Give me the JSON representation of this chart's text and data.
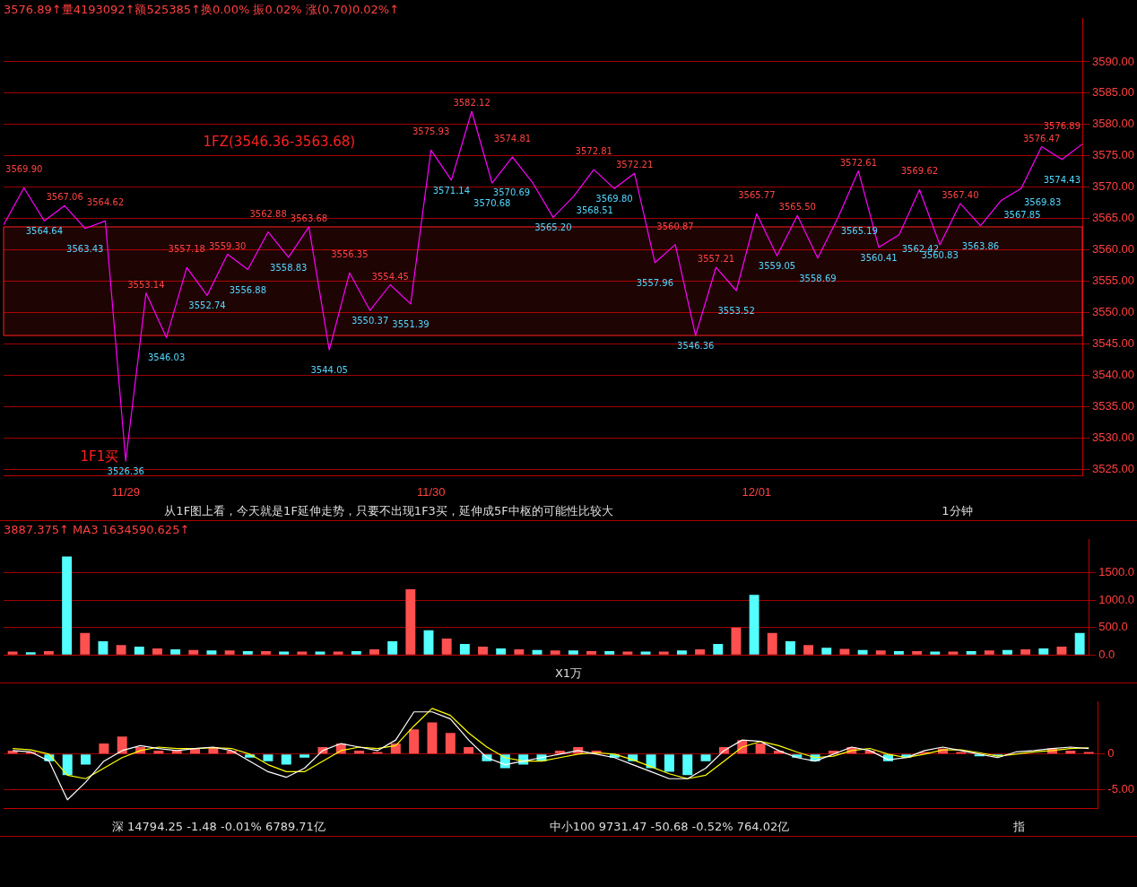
{
  "chart_data": [
    {
      "type": "line",
      "title": "3576.89↑量4193092↑额525385↑换0.00% 振0.02% 涨(0.70)0.02%↑",
      "categories": [
        null,
        null,
        null,
        null,
        null,
        null,
        "11/29",
        null,
        null,
        null,
        null,
        null,
        null,
        null,
        null,
        null,
        null,
        null,
        null,
        null,
        null,
        "11/30",
        null,
        null,
        null,
        null,
        null,
        null,
        null,
        null,
        null,
        null,
        null,
        null,
        null,
        null,
        null,
        "12/01",
        null,
        null,
        null,
        null,
        null,
        null,
        null,
        null,
        null,
        null,
        null,
        null,
        null,
        null,
        null,
        null
      ],
      "ylim": [
        3524,
        3597
      ],
      "yticks": [
        {
          "value": 3525,
          "label": "3525.00"
        },
        {
          "value": 3530,
          "label": "3530.00"
        },
        {
          "value": 3535,
          "label": "3535.00"
        },
        {
          "value": 3540,
          "label": "3540.00"
        },
        {
          "value": 3545,
          "label": "3545.00"
        },
        {
          "value": 3550,
          "label": "3550.00"
        },
        {
          "value": 3555,
          "label": "3555.00"
        },
        {
          "value": 3560,
          "label": "3560.00"
        },
        {
          "value": 3565,
          "label": "3565.00"
        },
        {
          "value": 3570,
          "label": "3570.00"
        },
        {
          "value": 3575,
          "label": "3575.00"
        },
        {
          "value": 3580,
          "label": "3580.00"
        },
        {
          "value": 3585,
          "label": "3585.00"
        },
        {
          "value": 3590,
          "label": "3590.00"
        }
      ],
      "grid": "y",
      "legend": false,
      "marker": "none",
      "line_style": "solid",
      "series": [
        {
          "color": "#ff00ff",
          "values": [
            3564,
            3569.9,
            3564.64,
            3567.06,
            3563.43,
            3564.62,
            3526.36,
            3553.14,
            3546.03,
            3557.18,
            3552.74,
            3559.3,
            3556.88,
            3562.88,
            3558.83,
            3563.68,
            3544.05,
            3556.35,
            3550.37,
            3554.45,
            3551.39,
            3575.93,
            3571.14,
            3582.12,
            3570.68,
            3574.81,
            3570.69,
            3565.2,
            3568.51,
            3572.81,
            3569.8,
            3572.21,
            3557.96,
            3560.87,
            3546.36,
            3557.21,
            3553.52,
            3565.77,
            3559.05,
            3565.5,
            3558.69,
            3565.19,
            3572.61,
            3560.41,
            3562.42,
            3569.62,
            3560.83,
            3567.4,
            3563.86,
            3567.85,
            3569.83,
            3576.47,
            3574.43,
            3576.89
          ],
          "value_labels": [
            null,
            "3569.90",
            "3564.64",
            "3567.06",
            "3563.43",
            "3564.62",
            "3526.36",
            "3553.14",
            "3546.03",
            "3557.18",
            "3552.74",
            "3559.30",
            "3556.88",
            "3562.88",
            "3558.83",
            "3563.68",
            "3544.05",
            "3556.35",
            "3550.37",
            "3554.45",
            "3551.39",
            "3575.93",
            "3571.14",
            "3582.12",
            "3570.68",
            "3574.81",
            "3570.69",
            "3565.20",
            "3568.51",
            "3572.81",
            "3569.80",
            "3572.21",
            "3557.96",
            "3560.87",
            "3546.36",
            "3557.21",
            "3553.52",
            "3565.77",
            "3559.05",
            "3565.50",
            "3558.69",
            "3565.19",
            "3572.61",
            "3560.41",
            "3562.42",
            "3569.62",
            "3560.83",
            "3567.40",
            "3563.86",
            "3567.85",
            "3569.83",
            "3576.47",
            "3574.43",
            "3576.89"
          ]
        }
      ],
      "bands": [
        {
          "axis": "y",
          "from": 3546.36,
          "to": 3563.68,
          "label": "1FZ(3546.36-3563.68)",
          "color": "#ff2020"
        }
      ],
      "annotations": [
        {
          "text": "1F1买",
          "x": "11/29",
          "y": 3526.36
        },
        "从1F图上看，今天就是1F延伸走势，只要不出现1F3买，延伸成5F中枢的可能性比较大",
        "1分钟"
      ]
    },
    {
      "type": "bar",
      "title": "3887.375↑ MA3 1634590.625↑",
      "categories": [
        null,
        null,
        null,
        null,
        null,
        null,
        null,
        null,
        null,
        null,
        null,
        null,
        null,
        null,
        null,
        null,
        null,
        null,
        null,
        null,
        null,
        null,
        null,
        null,
        null,
        null,
        null,
        null,
        null,
        null,
        null,
        null,
        null,
        null,
        null,
        null,
        null,
        null,
        null,
        null,
        null,
        null,
        null,
        null,
        null,
        null,
        null,
        null,
        null,
        null,
        null,
        null,
        null,
        null,
        null,
        null,
        null,
        null,
        null,
        null
      ],
      "ylim": [
        0,
        2120
      ],
      "yticks": [
        {
          "value": 0,
          "label": "0.0"
        },
        {
          "value": 500,
          "label": "500.0"
        },
        {
          "value": 1000,
          "label": "1000.0"
        },
        {
          "value": 1500,
          "label": "1500.0"
        }
      ],
      "grid": "y",
      "legend": false,
      "tick_labels": "y",
      "series": [
        {
          "values": [
            60,
            50,
            70,
            1800,
            400,
            250,
            180,
            150,
            120,
            100,
            90,
            80,
            80,
            70,
            70,
            60,
            60,
            60,
            60,
            70,
            100,
            250,
            1200,
            450,
            300,
            200,
            150,
            120,
            100,
            90,
            80,
            80,
            70,
            70,
            60,
            60,
            60,
            80,
            100,
            200,
            500,
            1100,
            400,
            250,
            180,
            130,
            110,
            90,
            80,
            70,
            70,
            60,
            60,
            70,
            80,
            90,
            100,
            120,
            150,
            400
          ],
          "colors": [
            "#ff5050",
            "#54ffff",
            "#ff5050",
            "#54ffff",
            "#ff5050",
            "#54ffff",
            "#ff5050",
            "#54ffff",
            "#ff5050",
            "#54ffff",
            "#ff5050",
            "#54ffff",
            "#ff5050",
            "#54ffff",
            "#ff5050",
            "#54ffff",
            "#ff5050",
            "#54ffff",
            "#ff5050",
            "#54ffff",
            "#ff5050",
            "#54ffff",
            "#ff5050",
            "#54ffff",
            "#ff5050",
            "#54ffff",
            "#ff5050",
            "#54ffff",
            "#ff5050",
            "#54ffff",
            "#ff5050",
            "#54ffff",
            "#ff5050",
            "#54ffff",
            "#ff5050",
            "#54ffff",
            "#ff5050",
            "#54ffff",
            "#ff5050",
            "#54ffff",
            "#ff5050",
            "#54ffff",
            "#ff5050",
            "#54ffff",
            "#ff5050",
            "#54ffff",
            "#ff5050",
            "#54ffff",
            "#ff5050",
            "#54ffff",
            "#ff5050",
            "#54ffff",
            "#ff5050",
            "#54ffff",
            "#ff5050",
            "#54ffff",
            "#ff5050",
            "#54ffff",
            "#ff5050",
            "#54ffff"
          ]
        }
      ],
      "annotations": [
        "X1万"
      ]
    },
    {
      "type": "bar",
      "categories": [
        null,
        null,
        null,
        null,
        null,
        null,
        null,
        null,
        null,
        null,
        null,
        null,
        null,
        null,
        null,
        null,
        null,
        null,
        null,
        null,
        null,
        null,
        null,
        null,
        null,
        null,
        null,
        null,
        null,
        null,
        null,
        null,
        null,
        null,
        null,
        null,
        null,
        null,
        null,
        null,
        null,
        null,
        null,
        null,
        null,
        null,
        null,
        null,
        null,
        null,
        null,
        null,
        null,
        null,
        null,
        null,
        null,
        null,
        null,
        null
      ],
      "ylim": [
        -7.7,
        7.5
      ],
      "yticks": [
        {
          "value": -5,
          "label": "-5.00"
        },
        0
      ],
      "grid": "y",
      "legend": false,
      "tick_labels": "y",
      "marker": "none",
      "series": [
        {
          "type": "bar",
          "values": [
            0.5,
            0.3,
            -1.0,
            -3.0,
            -1.5,
            1.5,
            2.5,
            1.0,
            0.5,
            0.5,
            0.8,
            1.0,
            0.5,
            -0.5,
            -1.0,
            -1.5,
            -0.5,
            1.0,
            1.5,
            0.5,
            0.3,
            1.5,
            3.5,
            4.5,
            3.0,
            1.0,
            -1.0,
            -2.0,
            -1.5,
            -1.0,
            0.5,
            1.0,
            0.5,
            -0.5,
            -1.0,
            -2.0,
            -2.5,
            -3.0,
            -1.0,
            1.0,
            2.0,
            1.5,
            0.5,
            -0.5,
            -1.0,
            0.5,
            1.0,
            0.5,
            -1.0,
            -0.5,
            0.3,
            0.8,
            0.3,
            -0.3,
            -0.3,
            null,
            null,
            0.8,
            0.5,
            0.3
          ],
          "colors": [
            "#ff5050",
            "#ff5050",
            "#54ffff",
            "#54ffff",
            "#54ffff",
            "#ff5050",
            "#ff5050",
            "#ff5050",
            "#ff5050",
            "#ff5050",
            "#ff5050",
            "#ff5050",
            "#ff5050",
            "#54ffff",
            "#54ffff",
            "#54ffff",
            "#54ffff",
            "#ff5050",
            "#ff5050",
            "#ff5050",
            "#ff5050",
            "#ff5050",
            "#ff5050",
            "#ff5050",
            "#ff5050",
            "#ff5050",
            "#54ffff",
            "#54ffff",
            "#54ffff",
            "#54ffff",
            "#ff5050",
            "#ff5050",
            "#ff5050",
            "#54ffff",
            "#54ffff",
            "#54ffff",
            "#54ffff",
            "#54ffff",
            "#54ffff",
            "#ff5050",
            "#ff5050",
            "#ff5050",
            "#ff5050",
            "#54ffff",
            "#54ffff",
            "#ff5050",
            "#ff5050",
            "#ff5050",
            "#54ffff",
            "#54ffff",
            "#ff5050",
            "#ff5050",
            "#ff5050",
            "#54ffff",
            "#54ffff",
            "#ff5050",
            "#ff5050",
            "#ff5050",
            "#ff5050",
            "#ff5050"
          ]
        },
        {
          "type": "line",
          "color": "#ffffff",
          "values": [
            0.5,
            0.3,
            -1,
            -6.5,
            -4,
            -1,
            0.5,
            1.2,
            0.8,
            0.5,
            0.8,
            1,
            0.5,
            -1,
            -2.5,
            -3.3,
            -2,
            0.5,
            1.5,
            1,
            0.5,
            2,
            6,
            6,
            5,
            2,
            -0.5,
            -1.5,
            -1,
            -0.5,
            0,
            0.5,
            0,
            -0.5,
            -1.5,
            -2.5,
            -3.5,
            -3.5,
            -2,
            0.5,
            2,
            1.8,
            0.5,
            -0.5,
            -1,
            0,
            1,
            0.5,
            -0.8,
            -0.5,
            0.5,
            1,
            0.5,
            0,
            -0.5,
            0.3,
            0.5,
            0.8,
            1,
            0.8
          ]
        },
        {
          "type": "line",
          "color": "#ffff00",
          "values": [
            0.8,
            0.6,
            0,
            -3,
            -3.5,
            -2,
            -0.5,
            0.5,
            1,
            0.8,
            0.8,
            0.9,
            0.8,
            0,
            -1.5,
            -2.5,
            -2.5,
            -1,
            0.5,
            1,
            0.8,
            1.2,
            4,
            6.5,
            5.5,
            3,
            1,
            -0.5,
            -1,
            -1,
            -0.5,
            0,
            0.2,
            0,
            -0.8,
            -1.8,
            -2.8,
            -3.5,
            -3,
            -1,
            1,
            1.8,
            1.2,
            0.3,
            -0.5,
            -0.3,
            0.5,
            0.8,
            0,
            -0.5,
            0,
            0.6,
            0.6,
            0.2,
            -0.3,
            0,
            0.3,
            0.5,
            0.8,
            0.9
          ]
        }
      ],
      "annotations": [
        "深 14794.25 -1.48 -0.01% 6789.71亿",
        "中小100 9731.47 -50.68 -0.52% 764.02亿",
        "指"
      ]
    }
  ]
}
